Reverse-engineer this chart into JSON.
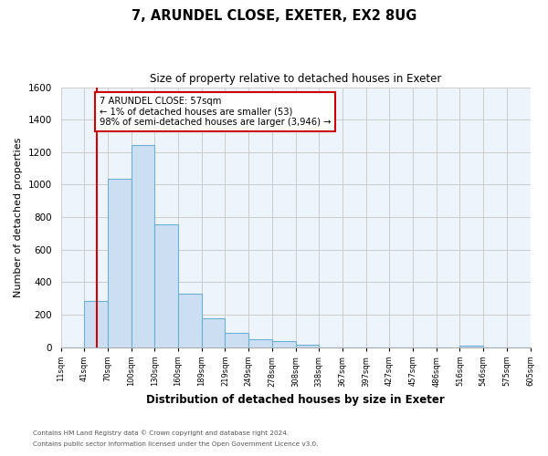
{
  "title": "7, ARUNDEL CLOSE, EXETER, EX2 8UG",
  "subtitle": "Size of property relative to detached houses in Exeter",
  "xlabel": "Distribution of detached houses by size in Exeter",
  "ylabel": "Number of detached properties",
  "bin_labels": [
    "11sqm",
    "41sqm",
    "70sqm",
    "100sqm",
    "130sqm",
    "160sqm",
    "189sqm",
    "219sqm",
    "249sqm",
    "278sqm",
    "308sqm",
    "338sqm",
    "367sqm",
    "397sqm",
    "427sqm",
    "457sqm",
    "486sqm",
    "516sqm",
    "546sqm",
    "575sqm",
    "605sqm"
  ],
  "bar_heights": [
    0,
    285,
    1035,
    1245,
    755,
    330,
    175,
    85,
    50,
    35,
    15,
    0,
    0,
    0,
    0,
    0,
    0,
    10,
    0,
    0,
    0
  ],
  "bar_color": "#ccdff2",
  "bar_edge_color": "#6baed6",
  "vline_x_index": 1.55,
  "vline_color": "#cc0000",
  "annotation_line1": "7 ARUNDEL CLOSE: 57sqm",
  "annotation_line2": "← 1% of detached houses are smaller (53)",
  "annotation_line3": "98% of semi-detached houses are larger (3,946) →",
  "annotation_box_color": "#ffffff",
  "annotation_box_edge": "#cc0000",
  "ylim": [
    0,
    1600
  ],
  "yticks": [
    0,
    200,
    400,
    600,
    800,
    1000,
    1200,
    1400,
    1600
  ],
  "footnote1": "Contains HM Land Registry data © Crown copyright and database right 2024.",
  "footnote2": "Contains public sector information licensed under the Open Government Licence v3.0.",
  "grid_color": "#cccccc",
  "bg_color": "#ffffff",
  "ax_bg_color": "#eef4fb"
}
